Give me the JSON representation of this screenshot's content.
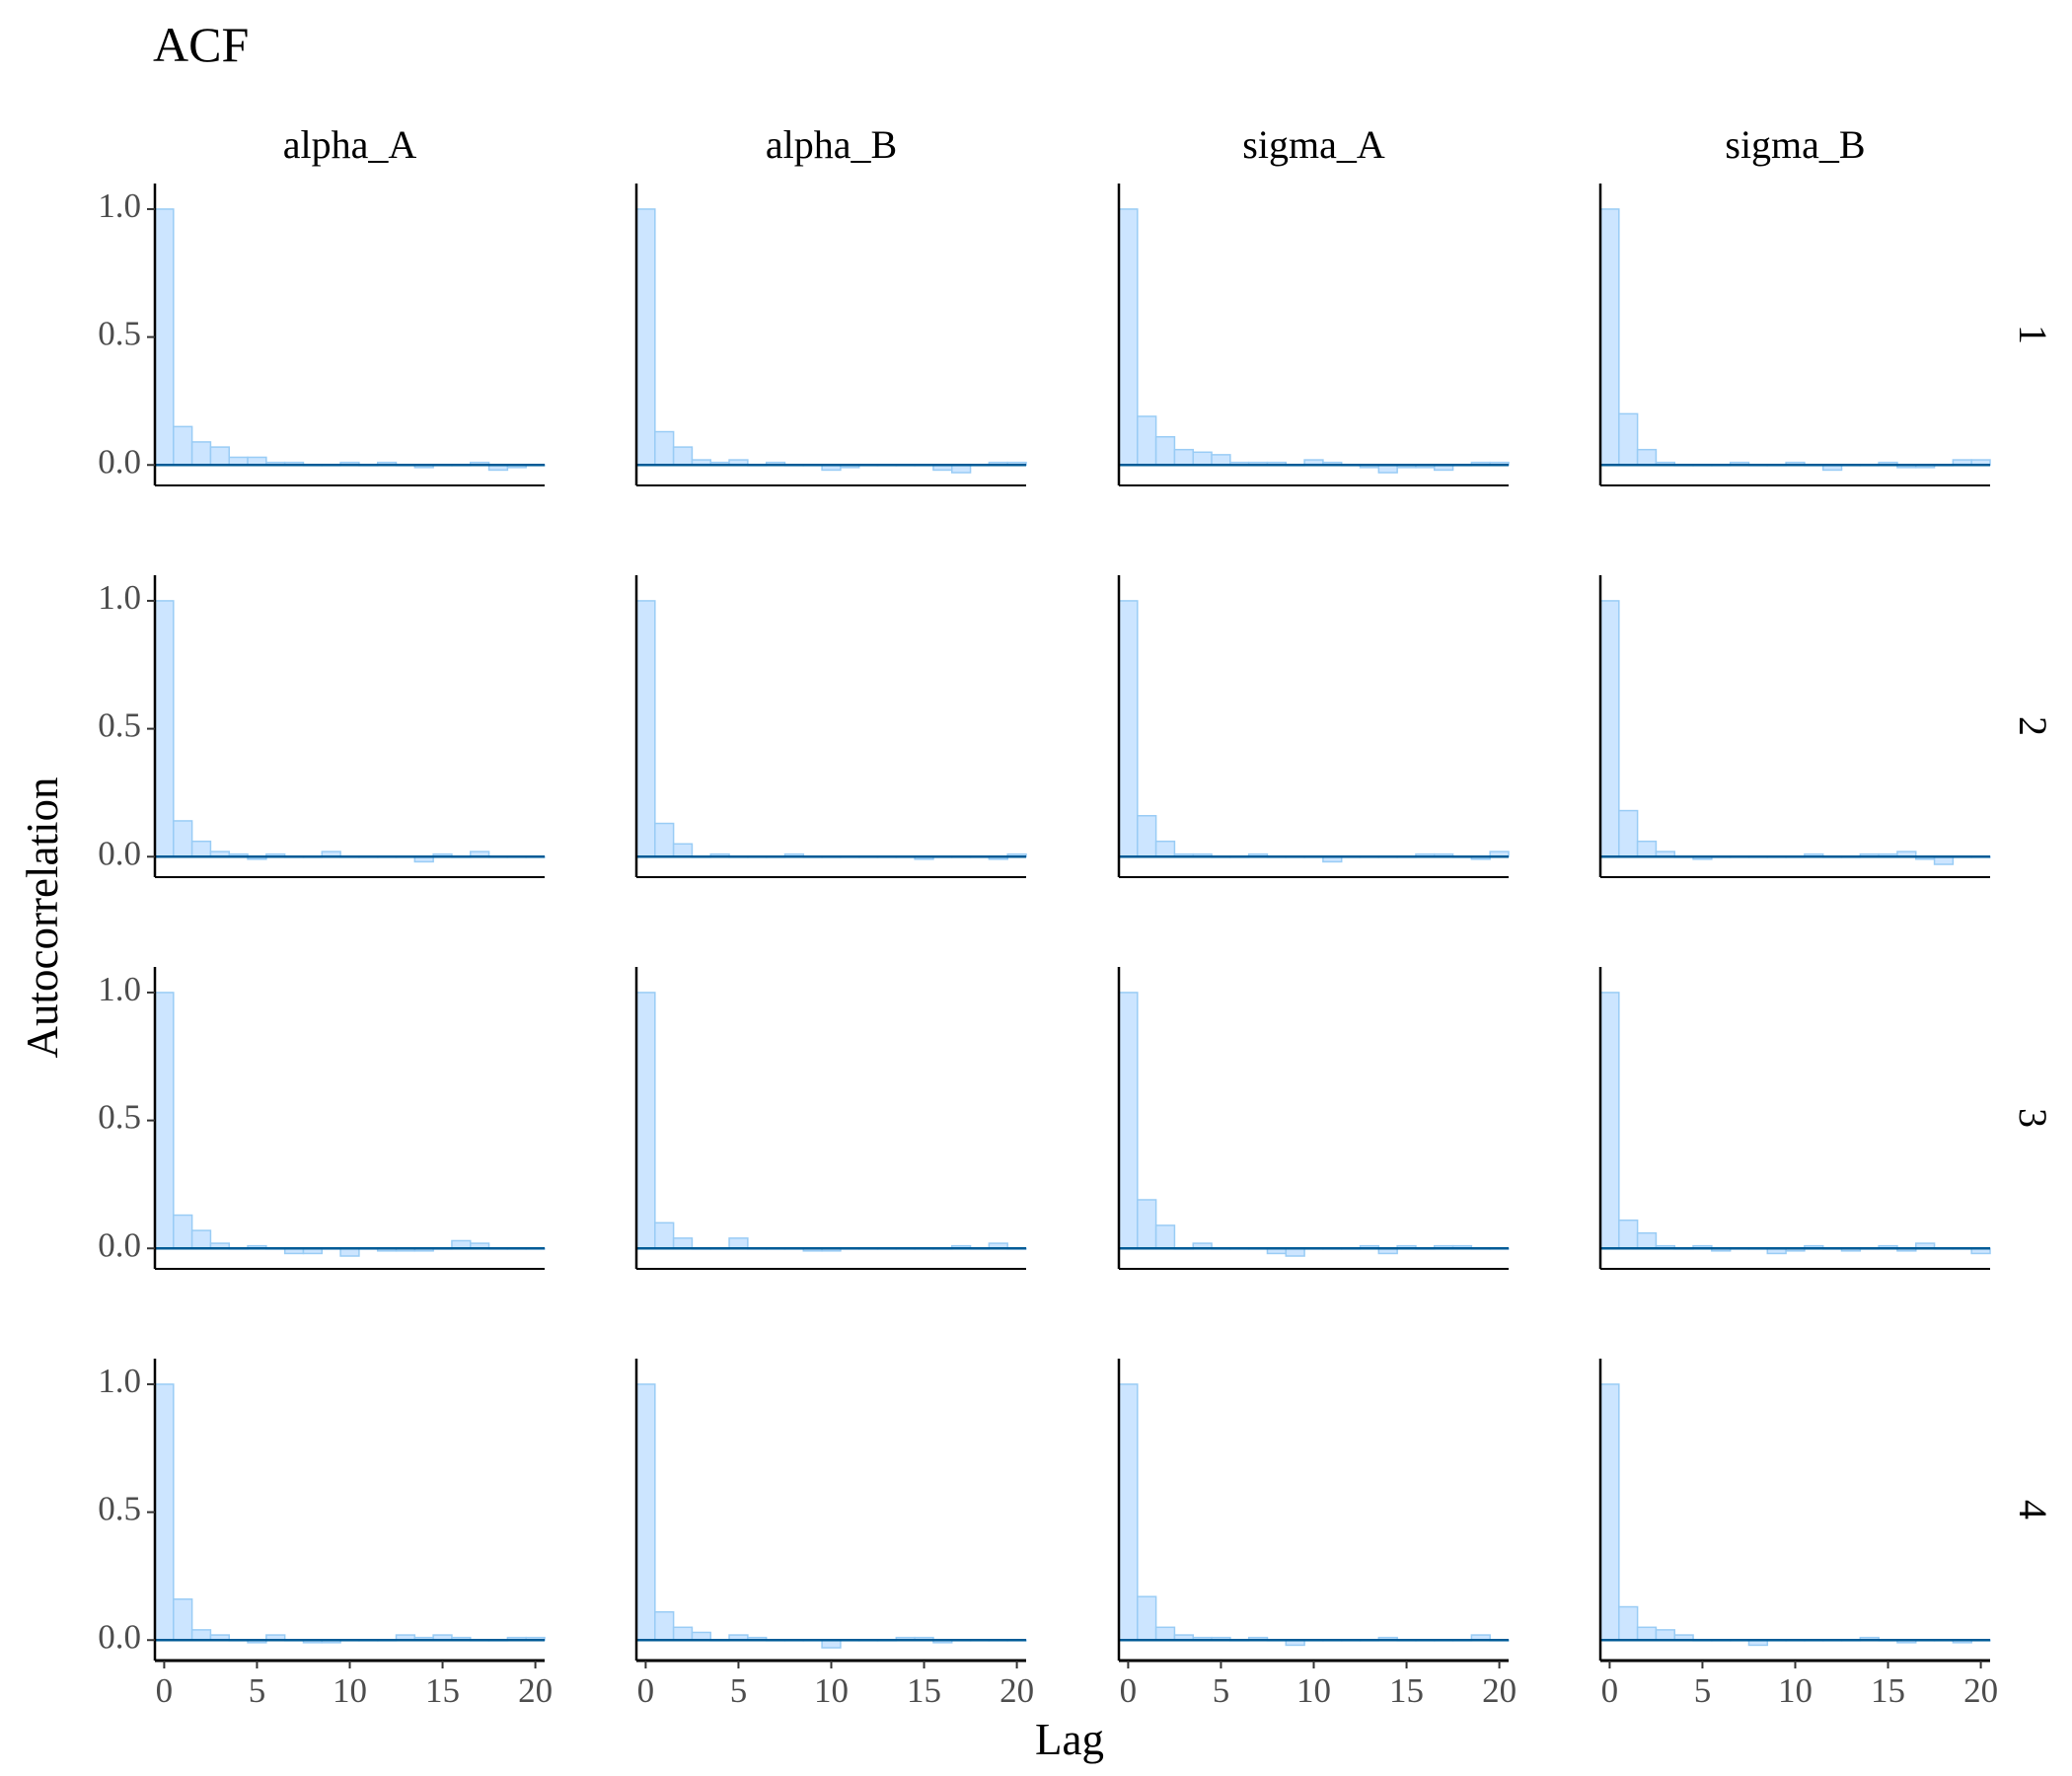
{
  "chart_data": {
    "type": "bar",
    "title": "ACF",
    "xlabel": "Lag",
    "ylabel": "Autocorrelation",
    "xlim": [
      -0.5,
      20.5
    ],
    "ylim": [
      -0.08,
      1.1
    ],
    "x_ticks": [
      "0",
      "5",
      "10",
      "15",
      "20"
    ],
    "y_ticks": [
      "0.0",
      "0.5",
      "1.0"
    ],
    "grid": false,
    "lags": [
      0,
      1,
      2,
      3,
      4,
      5,
      6,
      7,
      8,
      9,
      10,
      11,
      12,
      13,
      14,
      15,
      16,
      17,
      18,
      19,
      20
    ],
    "parameters": [
      "alpha_A",
      "alpha_B",
      "sigma_A",
      "sigma_B"
    ],
    "chains": [
      "1",
      "2",
      "3",
      "4"
    ],
    "colors": {
      "bar_fill": "#cce5ff",
      "bar_stroke": "#99ccf5",
      "zero_line": "#005b96",
      "axis": "#000000"
    },
    "panels": [
      {
        "parameter": "alpha_A",
        "chain": "1",
        "values": [
          1.0,
          0.15,
          0.09,
          0.07,
          0.03,
          0.03,
          0.01,
          0.01,
          0.0,
          0.0,
          0.01,
          0.0,
          0.01,
          0.0,
          -0.01,
          0.0,
          0.0,
          0.01,
          -0.02,
          -0.01,
          0.0
        ]
      },
      {
        "parameter": "alpha_B",
        "chain": "1",
        "values": [
          1.0,
          0.13,
          0.07,
          0.02,
          0.01,
          0.02,
          0.0,
          0.01,
          0.0,
          0.0,
          -0.02,
          -0.01,
          0.0,
          0.0,
          0.0,
          0.0,
          -0.02,
          -0.03,
          0.0,
          0.01,
          0.01
        ]
      },
      {
        "parameter": "sigma_A",
        "chain": "1",
        "values": [
          1.0,
          0.19,
          0.11,
          0.06,
          0.05,
          0.04,
          0.01,
          0.01,
          0.01,
          0.0,
          0.02,
          0.01,
          0.0,
          -0.01,
          -0.03,
          -0.01,
          -0.01,
          -0.02,
          0.0,
          0.01,
          0.01
        ]
      },
      {
        "parameter": "sigma_B",
        "chain": "1",
        "values": [
          1.0,
          0.2,
          0.06,
          0.01,
          0.0,
          0.0,
          0.0,
          0.01,
          0.0,
          0.0,
          0.01,
          0.0,
          -0.02,
          0.0,
          0.0,
          0.01,
          -0.01,
          -0.01,
          0.0,
          0.02,
          0.02
        ]
      },
      {
        "parameter": "alpha_A",
        "chain": "2",
        "values": [
          1.0,
          0.14,
          0.06,
          0.02,
          0.01,
          -0.01,
          0.01,
          0.0,
          0.0,
          0.02,
          0.0,
          0.0,
          0.0,
          0.0,
          -0.02,
          0.01,
          0.0,
          0.02,
          0.0,
          0.0,
          0.0
        ]
      },
      {
        "parameter": "alpha_B",
        "chain": "2",
        "values": [
          1.0,
          0.13,
          0.05,
          0.0,
          0.01,
          0.0,
          0.0,
          0.0,
          0.01,
          0.0,
          0.0,
          0.0,
          0.0,
          0.0,
          0.0,
          -0.01,
          0.0,
          0.0,
          0.0,
          -0.01,
          0.01
        ]
      },
      {
        "parameter": "sigma_A",
        "chain": "2",
        "values": [
          1.0,
          0.16,
          0.06,
          0.01,
          0.01,
          0.0,
          0.0,
          0.01,
          0.0,
          0.0,
          0.0,
          -0.02,
          0.0,
          0.0,
          0.0,
          0.0,
          0.01,
          0.01,
          0.0,
          -0.01,
          0.02
        ]
      },
      {
        "parameter": "sigma_B",
        "chain": "2",
        "values": [
          1.0,
          0.18,
          0.06,
          0.02,
          0.0,
          -0.01,
          0.0,
          0.0,
          0.0,
          0.0,
          0.0,
          0.01,
          0.0,
          0.0,
          0.01,
          0.01,
          0.02,
          -0.01,
          -0.03,
          0.0,
          0.0
        ]
      },
      {
        "parameter": "alpha_A",
        "chain": "3",
        "values": [
          1.0,
          0.13,
          0.07,
          0.02,
          0.0,
          0.01,
          0.0,
          -0.02,
          -0.02,
          0.0,
          -0.03,
          0.0,
          -0.01,
          -0.01,
          -0.01,
          0.0,
          0.03,
          0.02,
          0.0,
          0.0,
          0.0
        ]
      },
      {
        "parameter": "alpha_B",
        "chain": "3",
        "values": [
          1.0,
          0.1,
          0.04,
          0.0,
          0.0,
          0.04,
          0.0,
          0.0,
          0.0,
          -0.01,
          -0.01,
          0.0,
          0.0,
          0.0,
          0.0,
          0.0,
          0.0,
          0.01,
          0.0,
          0.02,
          0.0
        ]
      },
      {
        "parameter": "sigma_A",
        "chain": "3",
        "values": [
          1.0,
          0.19,
          0.09,
          0.0,
          0.02,
          0.0,
          0.0,
          0.0,
          -0.02,
          -0.03,
          0.0,
          0.0,
          0.0,
          0.01,
          -0.02,
          0.01,
          0.0,
          0.01,
          0.01,
          0.0,
          0.0
        ]
      },
      {
        "parameter": "sigma_B",
        "chain": "3",
        "values": [
          1.0,
          0.11,
          0.06,
          0.01,
          0.0,
          0.01,
          -0.01,
          0.0,
          0.0,
          -0.02,
          -0.01,
          0.01,
          0.0,
          -0.01,
          0.0,
          0.01,
          -0.01,
          0.02,
          0.0,
          0.0,
          -0.02
        ]
      },
      {
        "parameter": "alpha_A",
        "chain": "4",
        "values": [
          1.0,
          0.16,
          0.04,
          0.02,
          0.0,
          -0.01,
          0.02,
          0.0,
          -0.01,
          -0.01,
          0.0,
          0.0,
          0.0,
          0.02,
          0.01,
          0.02,
          0.01,
          0.0,
          0.0,
          0.01,
          0.01
        ]
      },
      {
        "parameter": "alpha_B",
        "chain": "4",
        "values": [
          1.0,
          0.11,
          0.05,
          0.03,
          0.0,
          0.02,
          0.01,
          0.0,
          0.0,
          0.0,
          -0.03,
          0.0,
          0.0,
          0.0,
          0.01,
          0.01,
          -0.01,
          0.0,
          0.0,
          0.0,
          0.0
        ]
      },
      {
        "parameter": "sigma_A",
        "chain": "4",
        "values": [
          1.0,
          0.17,
          0.05,
          0.02,
          0.01,
          0.01,
          0.0,
          0.01,
          0.0,
          -0.02,
          0.0,
          0.0,
          0.0,
          0.0,
          0.01,
          0.0,
          0.0,
          0.0,
          0.0,
          0.02,
          0.0
        ]
      },
      {
        "parameter": "sigma_B",
        "chain": "4",
        "values": [
          1.0,
          0.13,
          0.05,
          0.04,
          0.02,
          0.0,
          0.0,
          0.0,
          -0.02,
          0.0,
          0.0,
          0.0,
          0.0,
          0.0,
          0.01,
          0.0,
          -0.01,
          0.0,
          0.0,
          -0.01,
          0.0
        ]
      }
    ]
  }
}
